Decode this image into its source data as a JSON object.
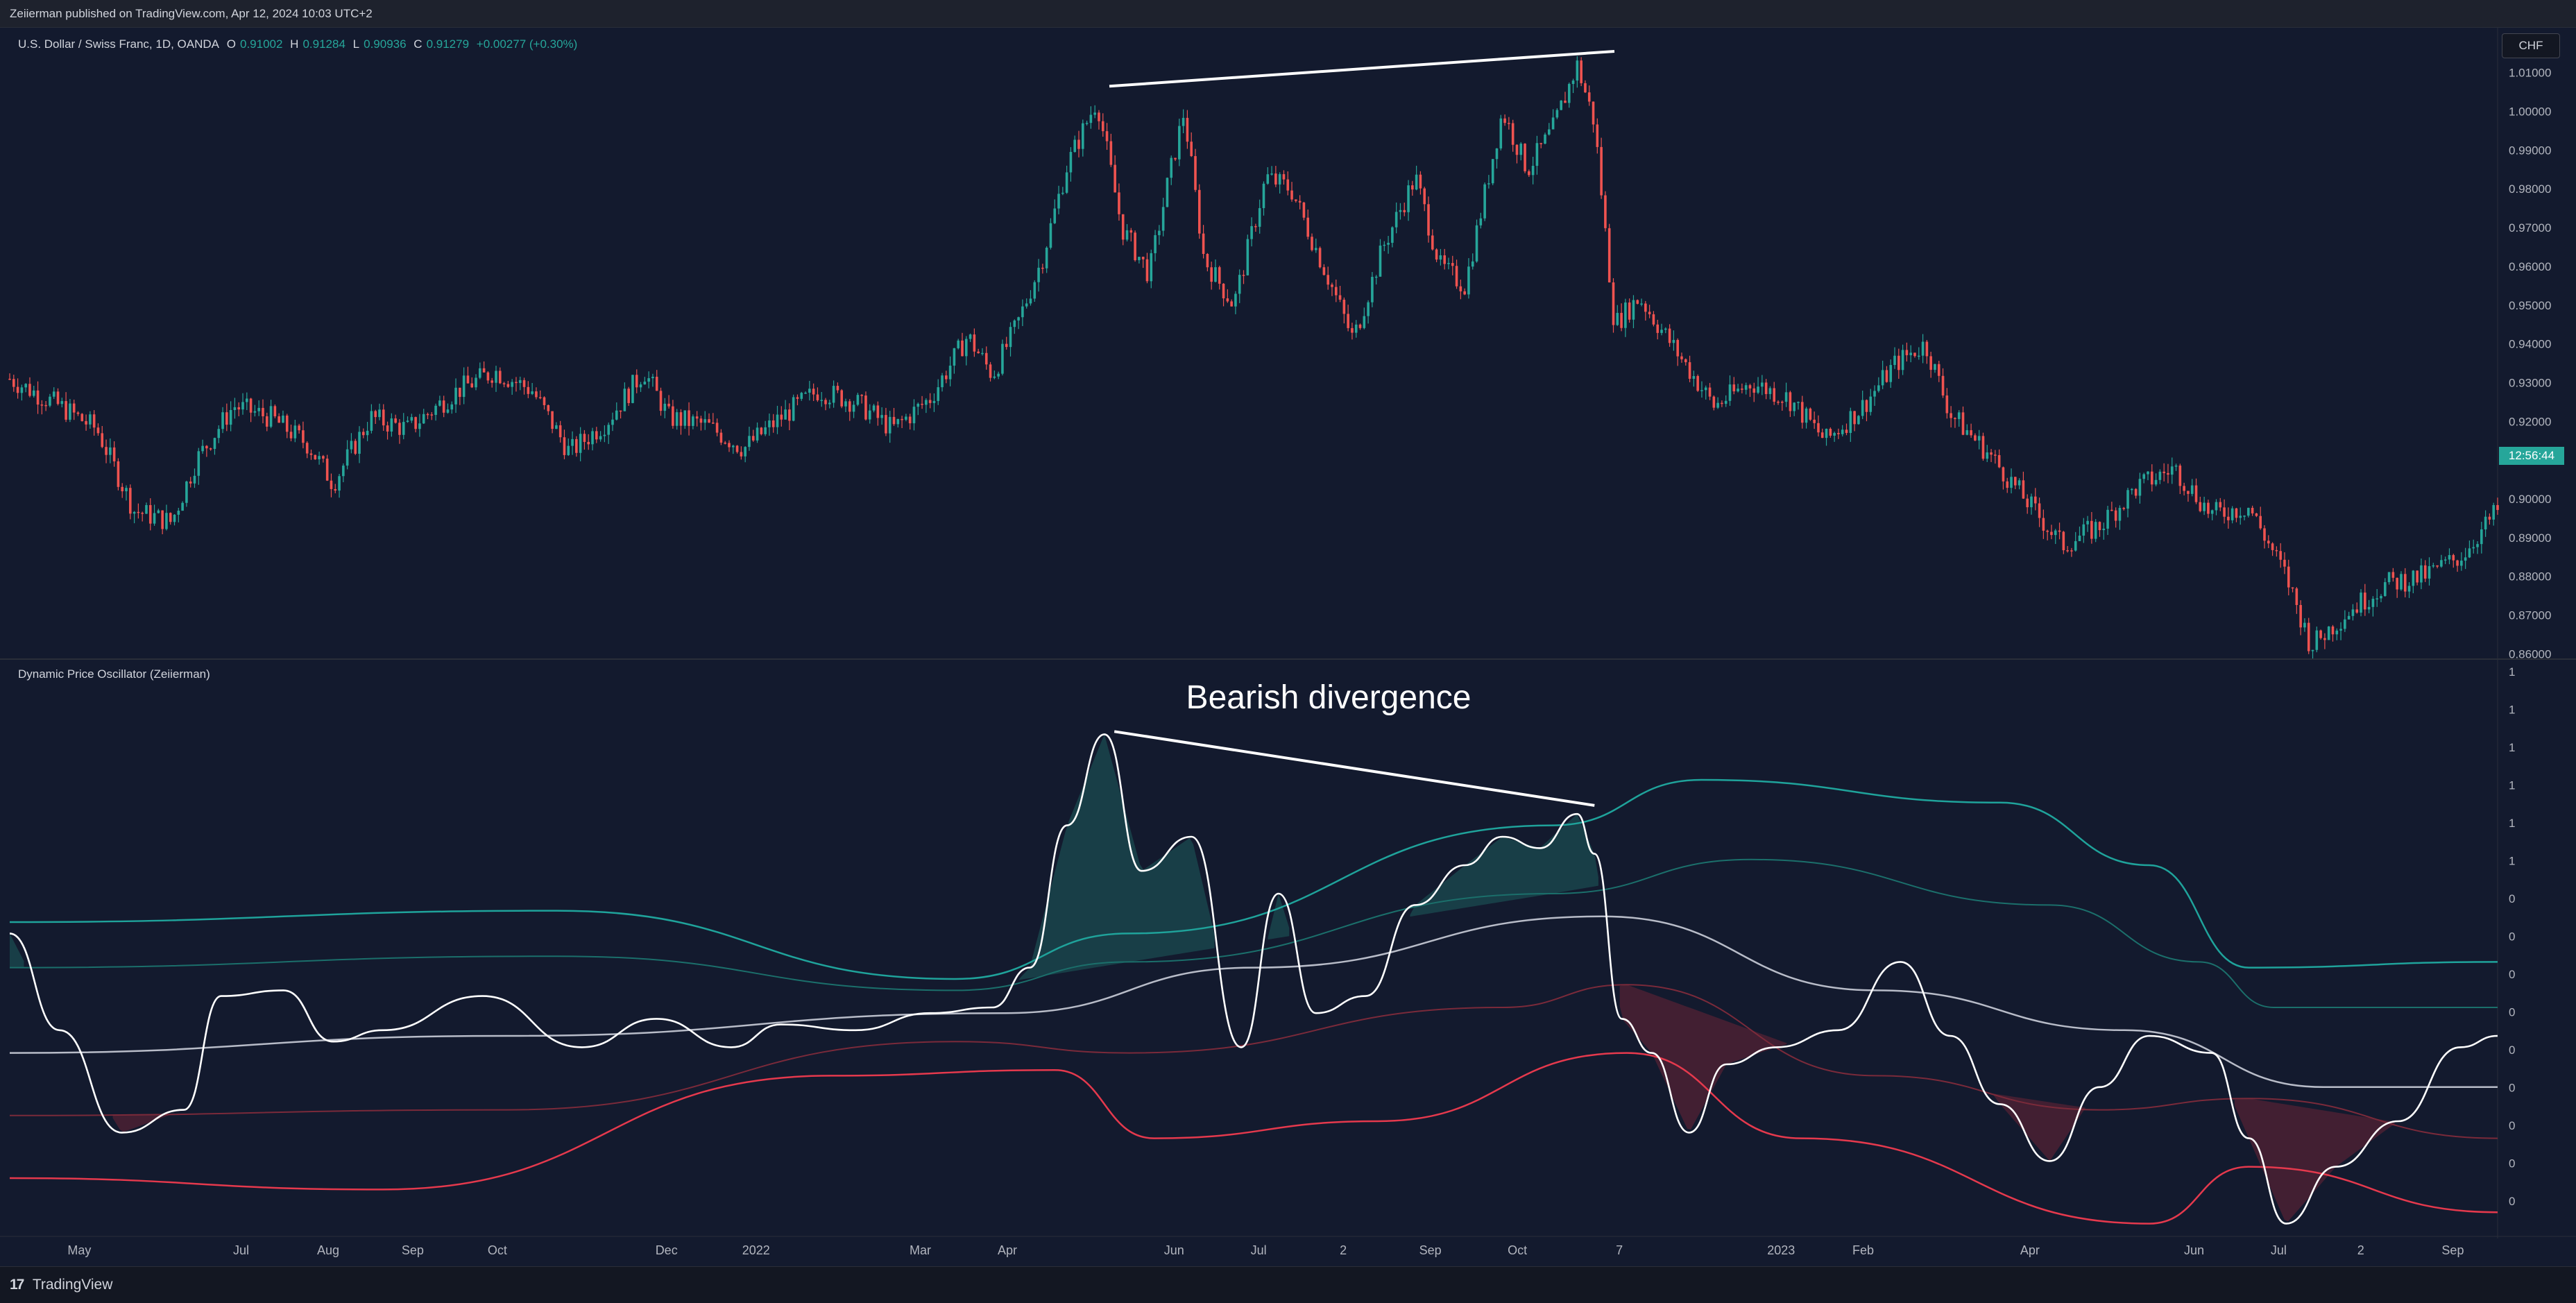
{
  "header": {
    "publisher": "Zeiierman published on TradingView.com, Apr 12, 2024 10:03 UTC+2"
  },
  "symbol": {
    "name": "U.S. Dollar / Swiss Franc, 1D, OANDA",
    "open_label": "O",
    "open": "0.91002",
    "high_label": "H",
    "high": "0.91284",
    "low_label": "L",
    "low": "0.90936",
    "close_label": "C",
    "close": "0.91279",
    "change": "+0.00277 (+0.30%)",
    "currency": "CHF",
    "countdown": "12:56:44"
  },
  "indicator": {
    "title": "Dynamic Price Oscillator (Zeiierman)"
  },
  "annotation": {
    "text": "Bearish divergence"
  },
  "footer": {
    "brand": "TradingView",
    "logo_glyph": "17"
  },
  "colors": {
    "background": "#131a2e",
    "up": "#26a69a",
    "down": "#ef5350",
    "oscillator": "#ffffff",
    "upper_band": "#1fa39b",
    "lower_band": "#e5394d"
  },
  "chart_data": [
    {
      "type": "candlestick",
      "x_ticks": [
        "May",
        "Jul",
        "Aug",
        "Sep",
        "Oct",
        "Dec",
        "2022",
        "Mar",
        "Apr",
        "Jun",
        "Jul",
        "2",
        "Sep",
        "Oct",
        "7",
        "2023",
        "Feb",
        "Apr",
        "Jun",
        "Jul",
        "2",
        "Sep"
      ],
      "y_ticks": [
        "1.01000",
        "1.00000",
        "0.99000",
        "0.98000",
        "0.97000",
        "0.96000",
        "0.95000",
        "0.94000",
        "0.93000",
        "0.92000",
        "0.91000",
        "0.90000",
        "0.89000",
        "0.88000",
        "0.87000",
        "0.86000"
      ],
      "ylim": [
        0.859,
        1.018
      ],
      "close_path": [
        [
          0,
          0.931
        ],
        [
          0.02,
          0.924
        ],
        [
          0.035,
          0.918
        ],
        [
          0.05,
          0.897
        ],
        [
          0.065,
          0.894
        ],
        [
          0.075,
          0.91
        ],
        [
          0.09,
          0.924
        ],
        [
          0.105,
          0.921
        ],
        [
          0.12,
          0.914
        ],
        [
          0.13,
          0.904
        ],
        [
          0.145,
          0.921
        ],
        [
          0.16,
          0.918
        ],
        [
          0.18,
          0.928
        ],
        [
          0.195,
          0.933
        ],
        [
          0.21,
          0.928
        ],
        [
          0.225,
          0.912
        ],
        [
          0.24,
          0.92
        ],
        [
          0.255,
          0.933
        ],
        [
          0.265,
          0.921
        ],
        [
          0.28,
          0.919
        ],
        [
          0.295,
          0.913
        ],
        [
          0.31,
          0.921
        ],
        [
          0.325,
          0.928
        ],
        [
          0.34,
          0.925
        ],
        [
          0.355,
          0.918
        ],
        [
          0.37,
          0.926
        ],
        [
          0.385,
          0.942
        ],
        [
          0.395,
          0.932
        ],
        [
          0.405,
          0.945
        ],
        [
          0.415,
          0.962
        ],
        [
          0.425,
          0.986
        ],
        [
          0.437,
          1.003
        ],
        [
          0.447,
          0.97
        ],
        [
          0.458,
          0.958
        ],
        [
          0.465,
          0.98
        ],
        [
          0.472,
          1.0
        ],
        [
          0.48,
          0.962
        ],
        [
          0.492,
          0.95
        ],
        [
          0.505,
          0.983
        ],
        [
          0.515,
          0.98
        ],
        [
          0.53,
          0.957
        ],
        [
          0.54,
          0.941
        ],
        [
          0.552,
          0.965
        ],
        [
          0.565,
          0.983
        ],
        [
          0.575,
          0.96
        ],
        [
          0.585,
          0.955
        ],
        [
          0.6,
          1.0
        ],
        [
          0.61,
          0.985
        ],
        [
          0.62,
          0.995
        ],
        [
          0.63,
          1.012
        ],
        [
          0.637,
          0.997
        ],
        [
          0.645,
          0.945
        ],
        [
          0.655,
          0.952
        ],
        [
          0.67,
          0.938
        ],
        [
          0.685,
          0.924
        ],
        [
          0.7,
          0.93
        ],
        [
          0.715,
          0.926
        ],
        [
          0.73,
          0.915
        ],
        [
          0.745,
          0.924
        ],
        [
          0.758,
          0.935
        ],
        [
          0.77,
          0.94
        ],
        [
          0.78,
          0.922
        ],
        [
          0.795,
          0.912
        ],
        [
          0.81,
          0.9
        ],
        [
          0.825,
          0.888
        ],
        [
          0.84,
          0.893
        ],
        [
          0.855,
          0.903
        ],
        [
          0.87,
          0.908
        ],
        [
          0.885,
          0.896
        ],
        [
          0.9,
          0.898
        ],
        [
          0.915,
          0.88
        ],
        [
          0.925,
          0.862
        ],
        [
          0.94,
          0.871
        ],
        [
          0.955,
          0.878
        ],
        [
          0.97,
          0.88
        ],
        [
          0.985,
          0.885
        ],
        [
          1.0,
          0.897
        ]
      ],
      "trendline": {
        "from": [
          0.442,
          1.0065
        ],
        "to": [
          0.645,
          1.0155
        ]
      }
    },
    {
      "type": "line",
      "title": "Dynamic Price Oscillator (Zeiierman)",
      "y_ticks": [
        "1",
        "1",
        "1",
        "1",
        "1",
        "1",
        "0",
        "0",
        "0",
        "0",
        "0",
        "0",
        "0",
        "0",
        "0"
      ],
      "ylim": [
        0,
        1
      ],
      "series": [
        {
          "values": [
            [
              0,
              0.53
            ],
            [
              0.02,
              0.36
            ],
            [
              0.045,
              0.18
            ],
            [
              0.07,
              0.22
            ],
            [
              0.085,
              0.42
            ],
            [
              0.11,
              0.43
            ],
            [
              0.13,
              0.34
            ],
            [
              0.15,
              0.36
            ],
            [
              0.19,
              0.42
            ],
            [
              0.23,
              0.33
            ],
            [
              0.26,
              0.38
            ],
            [
              0.29,
              0.33
            ],
            [
              0.31,
              0.37
            ],
            [
              0.34,
              0.36
            ],
            [
              0.37,
              0.39
            ],
            [
              0.395,
              0.4
            ],
            [
              0.41,
              0.47
            ],
            [
              0.425,
              0.72
            ],
            [
              0.44,
              0.88
            ],
            [
              0.455,
              0.64
            ],
            [
              0.475,
              0.7
            ],
            [
              0.495,
              0.33
            ],
            [
              0.51,
              0.6
            ],
            [
              0.525,
              0.39
            ],
            [
              0.545,
              0.42
            ],
            [
              0.565,
              0.58
            ],
            [
              0.585,
              0.65
            ],
            [
              0.6,
              0.7
            ],
            [
              0.615,
              0.68
            ],
            [
              0.63,
              0.74
            ],
            [
              0.637,
              0.67
            ],
            [
              0.648,
              0.38
            ],
            [
              0.66,
              0.32
            ],
            [
              0.675,
              0.18
            ],
            [
              0.69,
              0.3
            ],
            [
              0.71,
              0.33
            ],
            [
              0.735,
              0.36
            ],
            [
              0.76,
              0.48
            ],
            [
              0.78,
              0.35
            ],
            [
              0.8,
              0.23
            ],
            [
              0.82,
              0.13
            ],
            [
              0.84,
              0.26
            ],
            [
              0.86,
              0.35
            ],
            [
              0.885,
              0.32
            ],
            [
              0.9,
              0.17
            ],
            [
              0.915,
              0.02
            ],
            [
              0.935,
              0.12
            ],
            [
              0.96,
              0.2
            ],
            [
              0.985,
              0.33
            ],
            [
              1.0,
              0.35
            ]
          ]
        },
        {
          "values": [
            [
              0,
              0.32
            ],
            [
              0.2,
              0.35
            ],
            [
              0.4,
              0.39
            ],
            [
              0.5,
              0.47
            ],
            [
              0.64,
              0.56
            ],
            [
              0.75,
              0.43
            ],
            [
              0.85,
              0.36
            ],
            [
              0.93,
              0.26
            ],
            [
              1.0,
              0.26
            ]
          ]
        },
        {
          "values": [
            [
              0,
              0.55
            ],
            [
              0.22,
              0.57
            ],
            [
              0.38,
              0.45
            ],
            [
              0.45,
              0.53
            ],
            [
              0.62,
              0.72
            ],
            [
              0.68,
              0.8
            ],
            [
              0.8,
              0.76
            ],
            [
              0.86,
              0.65
            ],
            [
              0.9,
              0.47
            ],
            [
              1.0,
              0.48
            ]
          ]
        },
        {
          "values": [
            [
              0,
              0.47
            ],
            [
              0.22,
              0.49
            ],
            [
              0.38,
              0.43
            ],
            [
              0.45,
              0.48
            ],
            [
              0.62,
              0.6
            ],
            [
              0.7,
              0.66
            ],
            [
              0.82,
              0.58
            ],
            [
              0.88,
              0.48
            ],
            [
              0.91,
              0.4
            ],
            [
              1.0,
              0.4
            ]
          ]
        },
        {
          "values": [
            [
              0,
              0.21
            ],
            [
              0.2,
              0.22
            ],
            [
              0.38,
              0.34
            ],
            [
              0.45,
              0.32
            ],
            [
              0.6,
              0.4
            ],
            [
              0.65,
              0.44
            ],
            [
              0.75,
              0.28
            ],
            [
              0.84,
              0.22
            ],
            [
              0.9,
              0.24
            ],
            [
              1.0,
              0.17
            ]
          ]
        },
        {
          "values": [
            [
              0,
              0.1
            ],
            [
              0.15,
              0.08
            ],
            [
              0.33,
              0.28
            ],
            [
              0.42,
              0.29
            ],
            [
              0.46,
              0.17
            ],
            [
              0.55,
              0.2
            ],
            [
              0.65,
              0.32
            ],
            [
              0.72,
              0.17
            ],
            [
              0.86,
              0.02
            ],
            [
              0.9,
              0.12
            ],
            [
              1.0,
              0.04
            ]
          ]
        }
      ],
      "trendline": {
        "from": [
          0.444,
          0.885
        ],
        "to": [
          0.637,
          0.755
        ]
      }
    }
  ]
}
